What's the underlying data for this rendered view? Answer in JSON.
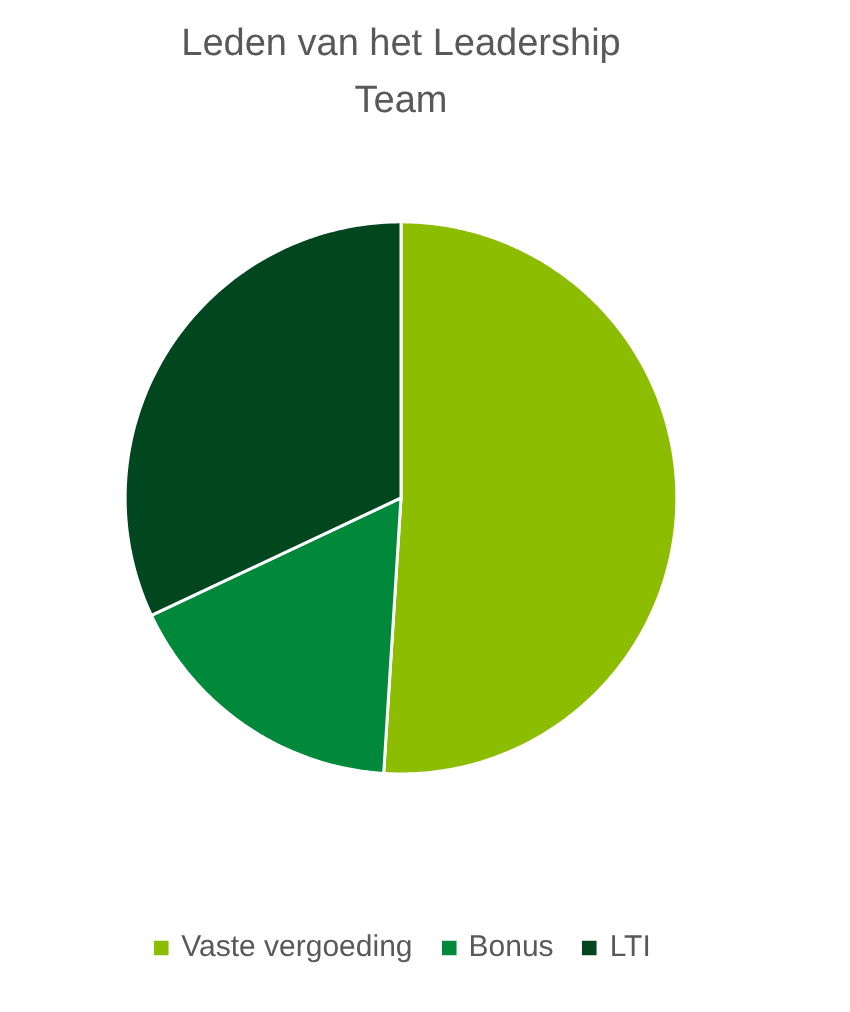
{
  "chart_data": {
    "type": "pie",
    "title": "Leden van het Leadership Team",
    "categories": [
      "Vaste vergoeding",
      "Bonus",
      "LTI"
    ],
    "values": [
      51,
      17,
      32
    ],
    "colors": [
      "#8cbd00",
      "#00893a",
      "#00461e"
    ],
    "legend": "bottom"
  }
}
